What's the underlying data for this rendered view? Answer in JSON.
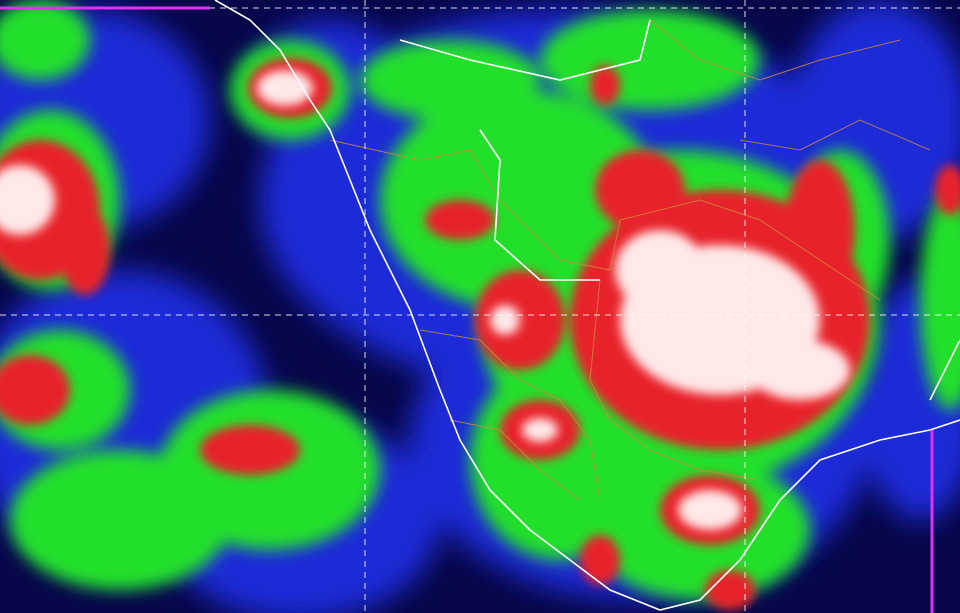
{
  "map": {
    "kind": "satellite-infrared-imagery",
    "colors": {
      "background": "#07074a",
      "low_cloud": "#1a2ad8",
      "mid_cloud": "#22e02a",
      "high_cloud": "#e8202a",
      "very_high_cloud": "#ffe8e8",
      "coastline": "#ffffff",
      "state_borders": "#d08a3a",
      "grid_lines": "#ffffff",
      "marker_lines": "#e030f0"
    },
    "layers": [
      "cloud-cover",
      "coastline",
      "state-borders",
      "lat-lon-grid",
      "marker-lines"
    ]
  }
}
